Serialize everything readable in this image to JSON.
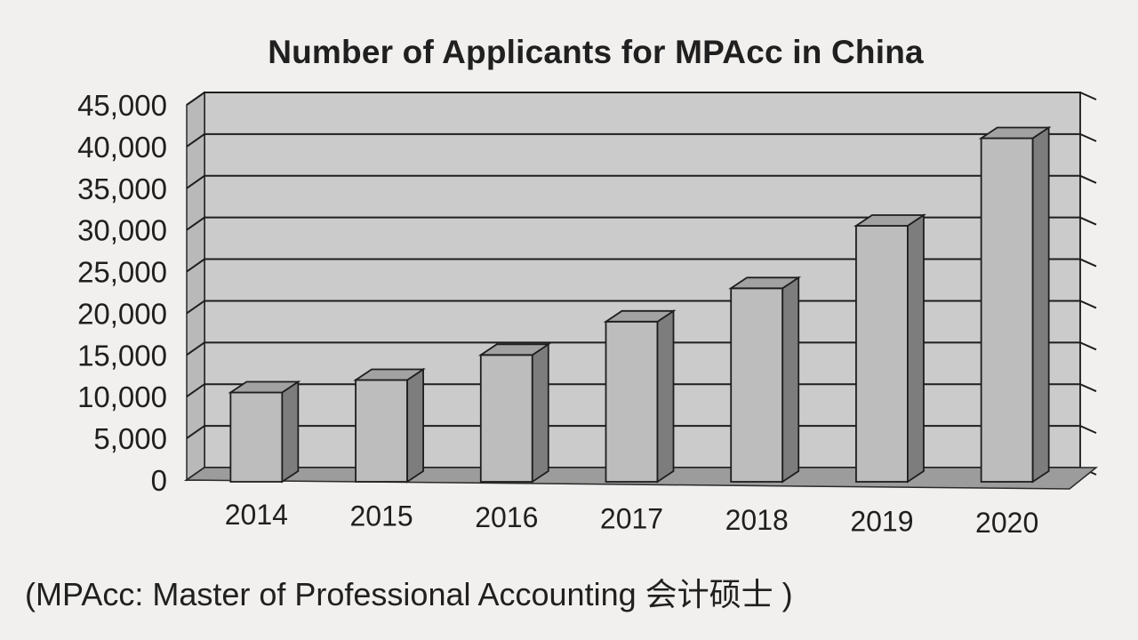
{
  "chart_data": {
    "type": "bar",
    "title": "Number of Applicants for MPAcc in China",
    "categories": [
      "2014",
      "2015",
      "2016",
      "2017",
      "2018",
      "2019",
      "2020"
    ],
    "values": [
      10500,
      12000,
      15000,
      19000,
      23000,
      30500,
      41000
    ],
    "ylim": [
      0,
      45000
    ],
    "yticks": [
      0,
      5000,
      10000,
      15000,
      20000,
      25000,
      30000,
      35000,
      40000,
      45000
    ],
    "ytick_labels": [
      "0",
      "5,000",
      "10,000",
      "15,000",
      "20,000",
      "25,000",
      "30,000",
      "35,000",
      "40,000",
      "45,000"
    ],
    "xlabel": "",
    "ylabel": "",
    "grid": true,
    "legend": "none",
    "style": "3d",
    "colors": {
      "bar_front": "#bdbdbd",
      "bar_side": "#7d7d7d",
      "bar_top": "#a2a2a2",
      "wall": "#cbcbcb",
      "grid": "#1e1e1e"
    }
  },
  "footnote": "(MPAcc: Master of Professional Accounting 会计硕士 )"
}
